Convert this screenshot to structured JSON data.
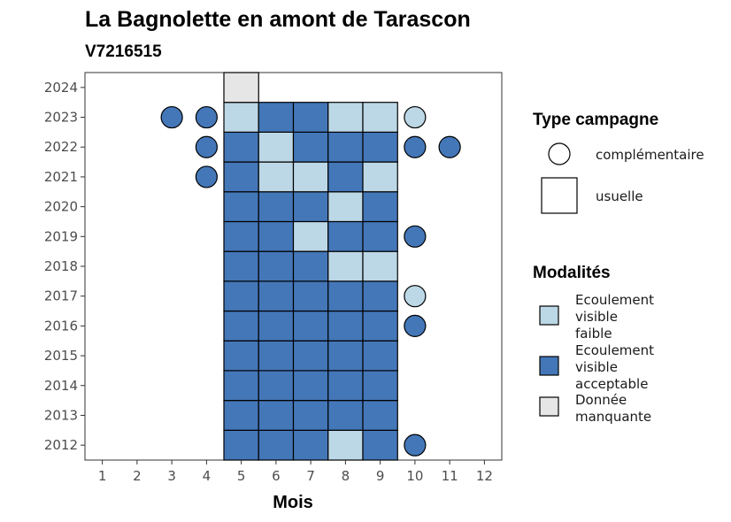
{
  "chart_data": {
    "type": "heatmap",
    "title": "La Bagnolette en amont de Tarascon",
    "subtitle": "V7216515",
    "xlabel": "Mois",
    "ylabel": "",
    "x_ticks": [
      1,
      2,
      3,
      4,
      5,
      6,
      7,
      8,
      9,
      10,
      11,
      12
    ],
    "y_ticks": [
      2012,
      2013,
      2014,
      2015,
      2016,
      2017,
      2018,
      2019,
      2020,
      2021,
      2022,
      2023,
      2024
    ],
    "xlim": [
      0.5,
      12.5
    ],
    "ylim": [
      2011.5,
      2024.5
    ],
    "grid": false,
    "colors": {
      "Ecoulement visible faible": "#bcd7e6",
      "Ecoulement visible acceptable": "#4477b8",
      "Donnée manquante": "#e6e6e6"
    },
    "legend": {
      "position": "right",
      "type_title": "Type campagne",
      "type_items": [
        {
          "label": "complémentaire",
          "shape": "circle"
        },
        {
          "label": "usuelle",
          "shape": "square"
        }
      ],
      "modalites_title": "Modalités",
      "modalites_items": [
        {
          "label": [
            "Ecoulement",
            "visible",
            "faible"
          ],
          "value": "Ecoulement visible faible"
        },
        {
          "label": [
            "Ecoulement",
            "visible",
            "acceptable"
          ],
          "value": "Ecoulement visible acceptable"
        },
        {
          "label": [
            "Donnée",
            "manquante"
          ],
          "value": "Donnée manquante"
        }
      ]
    },
    "usuelle": [
      {
        "year": 2012,
        "values": [
          [
            5,
            "A"
          ],
          [
            6,
            "A"
          ],
          [
            7,
            "A"
          ],
          [
            8,
            "F"
          ],
          [
            9,
            "A"
          ]
        ]
      },
      {
        "year": 2013,
        "values": [
          [
            5,
            "A"
          ],
          [
            6,
            "A"
          ],
          [
            7,
            "A"
          ],
          [
            8,
            "A"
          ],
          [
            9,
            "A"
          ]
        ]
      },
      {
        "year": 2014,
        "values": [
          [
            5,
            "A"
          ],
          [
            6,
            "A"
          ],
          [
            7,
            "A"
          ],
          [
            8,
            "A"
          ],
          [
            9,
            "A"
          ]
        ]
      },
      {
        "year": 2015,
        "values": [
          [
            5,
            "A"
          ],
          [
            6,
            "A"
          ],
          [
            7,
            "A"
          ],
          [
            8,
            "A"
          ],
          [
            9,
            "A"
          ]
        ]
      },
      {
        "year": 2016,
        "values": [
          [
            5,
            "A"
          ],
          [
            6,
            "A"
          ],
          [
            7,
            "A"
          ],
          [
            8,
            "A"
          ],
          [
            9,
            "A"
          ]
        ]
      },
      {
        "year": 2017,
        "values": [
          [
            5,
            "A"
          ],
          [
            6,
            "A"
          ],
          [
            7,
            "A"
          ],
          [
            8,
            "A"
          ],
          [
            9,
            "A"
          ]
        ]
      },
      {
        "year": 2018,
        "values": [
          [
            5,
            "A"
          ],
          [
            6,
            "A"
          ],
          [
            7,
            "A"
          ],
          [
            8,
            "F"
          ],
          [
            9,
            "F"
          ]
        ]
      },
      {
        "year": 2019,
        "values": [
          [
            5,
            "A"
          ],
          [
            6,
            "A"
          ],
          [
            7,
            "F"
          ],
          [
            8,
            "A"
          ],
          [
            9,
            "A"
          ]
        ]
      },
      {
        "year": 2020,
        "values": [
          [
            5,
            "A"
          ],
          [
            6,
            "A"
          ],
          [
            7,
            "A"
          ],
          [
            8,
            "F"
          ],
          [
            9,
            "A"
          ]
        ]
      },
      {
        "year": 2021,
        "values": [
          [
            5,
            "A"
          ],
          [
            6,
            "F"
          ],
          [
            7,
            "F"
          ],
          [
            8,
            "A"
          ],
          [
            9,
            "F"
          ]
        ]
      },
      {
        "year": 2022,
        "values": [
          [
            5,
            "A"
          ],
          [
            6,
            "F"
          ],
          [
            7,
            "A"
          ],
          [
            8,
            "A"
          ],
          [
            9,
            "A"
          ]
        ]
      },
      {
        "year": 2023,
        "values": [
          [
            5,
            "F"
          ],
          [
            6,
            "A"
          ],
          [
            7,
            "A"
          ],
          [
            8,
            "F"
          ],
          [
            9,
            "F"
          ]
        ]
      },
      {
        "year": 2024,
        "values": [
          [
            5,
            "M"
          ]
        ]
      }
    ],
    "value_codes": {
      "A": "Ecoulement visible acceptable",
      "F": "Ecoulement visible faible",
      "M": "Donnée manquante"
    },
    "complementaire": [
      {
        "year": 2023,
        "month": 3,
        "value": "A"
      },
      {
        "year": 2023,
        "month": 4,
        "value": "A"
      },
      {
        "year": 2023,
        "month": 10,
        "value": "F"
      },
      {
        "year": 2022,
        "month": 4,
        "value": "A"
      },
      {
        "year": 2022,
        "month": 10,
        "value": "A"
      },
      {
        "year": 2022,
        "month": 11,
        "value": "A"
      },
      {
        "year": 2021,
        "month": 4,
        "value": "A"
      },
      {
        "year": 2019,
        "month": 10,
        "value": "A"
      },
      {
        "year": 2017,
        "month": 10,
        "value": "F"
      },
      {
        "year": 2016,
        "month": 10,
        "value": "A"
      },
      {
        "year": 2012,
        "month": 10,
        "value": "A"
      }
    ]
  }
}
